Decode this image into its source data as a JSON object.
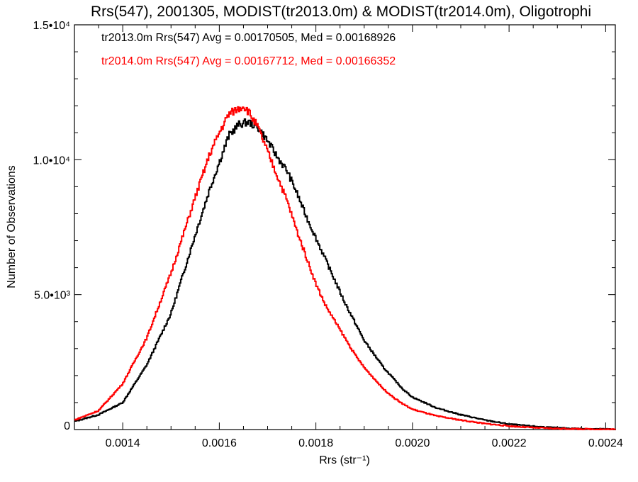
{
  "chart_data": {
    "type": "line",
    "title": "Rrs(547), 2001305, MODIST(tr2013.0m) & MODIST(tr2014.0m), Oligotrophi",
    "xlabel": "Rrs (str⁻¹)",
    "ylabel": "Number of Observations",
    "xlim": [
      0.0013,
      0.00242
    ],
    "ylim": [
      0,
      15000
    ],
    "xticks": [
      0.0014,
      0.0016,
      0.0018,
      0.002,
      0.0022,
      0.0024
    ],
    "xtick_labels": [
      "0.0014",
      "0.0016",
      "0.0018",
      "0.0020",
      "0.0022",
      "0.0024"
    ],
    "yticks": [
      0,
      5000,
      10000,
      15000
    ],
    "ytick_labels": [
      {
        "base": "0",
        "exp": ""
      },
      {
        "base": "5.0•1",
        "exp": ""
      },
      {
        "base": "1.0•10",
        "exp": "4"
      },
      {
        "base": "1.5•10",
        "exp": "4"
      }
    ],
    "ytick_labels_full": [
      "0",
      "5.0•10³",
      "1.0•10⁴",
      "1.5•10⁴"
    ],
    "grid": false,
    "legend_position": "top-left",
    "series": [
      {
        "name": "tr2013.0m",
        "color": "#000000",
        "annotation": "tr2013.0m Rrs(547) Avg = 0.00170505, Med = 0.00168926",
        "x": [
          0.0013,
          0.00135,
          0.0014,
          0.00145,
          0.0015,
          0.00155,
          0.00158,
          0.0016,
          0.00162,
          0.00164,
          0.00166,
          0.00168,
          0.0017,
          0.00172,
          0.00174,
          0.00176,
          0.00178,
          0.0018,
          0.00182,
          0.00184,
          0.00186,
          0.00188,
          0.0019,
          0.00192,
          0.00194,
          0.00196,
          0.00198,
          0.002,
          0.00205,
          0.0021,
          0.00215,
          0.0022,
          0.00225,
          0.0023,
          0.00235,
          0.00242
        ],
        "y": [
          300,
          550,
          1000,
          2400,
          4300,
          7200,
          8900,
          9900,
          10900,
          11300,
          11400,
          11200,
          10700,
          10100,
          9600,
          8800,
          7900,
          7100,
          6300,
          5500,
          4700,
          4000,
          3300,
          2800,
          2300,
          1900,
          1500,
          1200,
          800,
          550,
          350,
          200,
          120,
          60,
          30,
          10
        ]
      },
      {
        "name": "tr2014.0m",
        "color": "#ff0000",
        "annotation": "tr2014.0m Rrs(547) Avg = 0.00167712, Med = 0.00166352",
        "x": [
          0.0013,
          0.00135,
          0.0014,
          0.00145,
          0.0015,
          0.00155,
          0.00158,
          0.0016,
          0.00162,
          0.00164,
          0.00165,
          0.00166,
          0.00168,
          0.0017,
          0.00172,
          0.00174,
          0.00176,
          0.00178,
          0.0018,
          0.00182,
          0.00184,
          0.00186,
          0.00188,
          0.0019,
          0.00192,
          0.00194,
          0.00196,
          0.00198,
          0.002,
          0.00205,
          0.0021,
          0.00215,
          0.0022,
          0.00225,
          0.0023,
          0.00235,
          0.00242
        ],
        "y": [
          350,
          700,
          1700,
          3400,
          5800,
          8600,
          10200,
          11000,
          11700,
          11900,
          12000,
          11800,
          11200,
          10300,
          9400,
          8500,
          7400,
          6400,
          5400,
          4600,
          4000,
          3400,
          2800,
          2300,
          1900,
          1500,
          1200,
          950,
          750,
          500,
          350,
          220,
          130,
          70,
          35,
          20,
          5
        ]
      }
    ]
  }
}
